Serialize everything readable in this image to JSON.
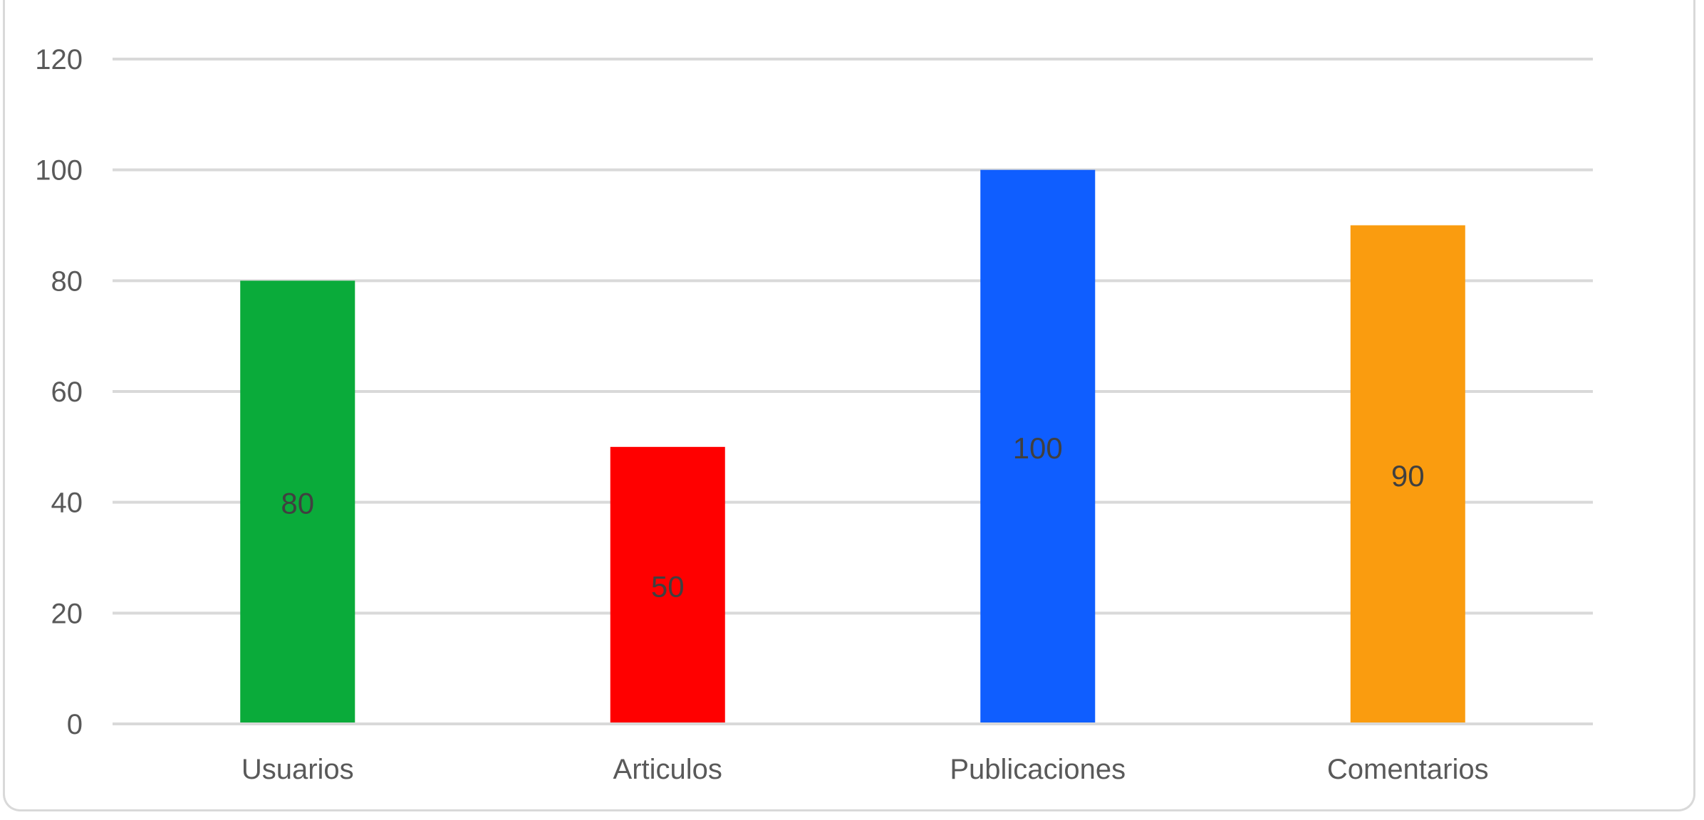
{
  "chart_data": {
    "type": "bar",
    "categories": [
      "Usuarios",
      "Articulos",
      "Publicaciones",
      "Comentarios"
    ],
    "values": [
      80,
      50,
      100,
      90
    ],
    "colors": [
      "#0aab3a",
      "#ff0000",
      "#0f5eff",
      "#fa9c0f"
    ],
    "title": "",
    "xlabel": "",
    "ylabel": "",
    "ylim": [
      0,
      120
    ],
    "yticks": [
      0,
      20,
      40,
      60,
      80,
      100,
      120
    ],
    "grid": true,
    "data_labels": [
      "80",
      "50",
      "100",
      "90"
    ]
  }
}
